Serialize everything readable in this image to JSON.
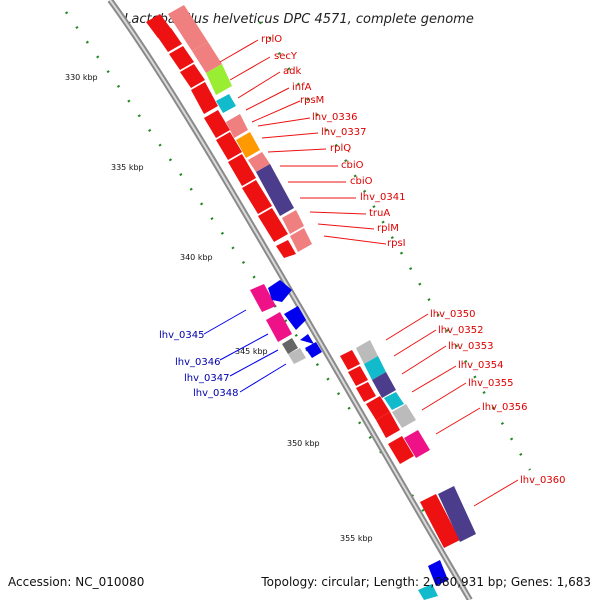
{
  "title": "Lactobacillus helveticus DPC 4571, complete genome",
  "footer": {
    "accession": "Accession: NC_010080",
    "summary": "Topology: circular; Length: 2,080,931 bp; Genes: 1,683"
  },
  "scale_labels": [
    {
      "text": "330 kbp"
    },
    {
      "text": "335 kbp"
    },
    {
      "text": "340 kbp"
    },
    {
      "text": "345 kbp"
    },
    {
      "text": "350 kbp"
    },
    {
      "text": "355 kbp"
    }
  ],
  "gene_labels_red": [
    "rplO",
    "secY",
    "adk",
    "infA",
    "rpsM",
    "lhv_0336",
    "lhv_0337",
    "rplQ",
    "cbiO",
    "cbiO",
    "lhv_0341",
    "truA",
    "rplM",
    "rpsI"
  ],
  "gene_labels_red2": [
    "lhv_0350",
    "lhv_0352",
    "lhv_0353",
    "lhv_0354",
    "lhv_0355",
    "lhv_0356",
    "lhv_0360"
  ],
  "gene_labels_blue": [
    "lhv_0345",
    "lhv_0346",
    "lhv_0347",
    "lhv_0348"
  ],
  "colors": {
    "backbone": "#8a8a8a",
    "red_gene": "#ee1111",
    "salmon": "#f08080",
    "blue_gene": "#0000ee",
    "magenta": "#ee1188",
    "navy": "#4b3c8c",
    "cyan": "#11bbcc",
    "orange": "#ff9900",
    "lime": "#99ee33",
    "gray": "#bbbbbb",
    "dark_gray": "#666666",
    "tick": "#228822",
    "label_red": "#dd0000",
    "label_blue": "#0000aa"
  }
}
